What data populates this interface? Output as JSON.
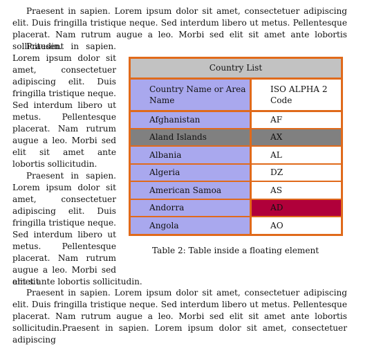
{
  "paragraphs": {
    "top": "Praesent in sapien. Lorem ipsum dolor sit amet, consectetuer adipiscing elit. Duis fringilla tristique neque. Sed interdum libero ut metus. Pellentesque placerat. Nam rutrum augue a leo. Morbi sed elit sit amet ante lobortis sollicitudin.",
    "left1": "Praesent in sapien. Lorem ipsum dolor sit amet, consectetuer adipiscing elit. Duis fringilla tristique neque. Sed interdum libero ut metus. Pellentesque placerat. Nam rutrum augue a leo. Morbi sed elit sit amet ante lobortis sollicitudin.",
    "left2": "Praesent in sapien. Lorem ipsum dolor sit amet, consectetuer adipiscing elit. Duis fringilla tristique neque. Sed interdum libero ut metus. Pellentesque placerat. Nam rutrum augue a leo. Morbi sed elit sit",
    "left2_tail": "amet ante lobortis sollicitudin.",
    "bottom": "Praesent in sapien. Lorem ipsum dolor sit amet, consectetuer adipiscing elit. Duis fringilla tristique neque. Sed interdum libero ut metus. Pellentesque placerat. Nam rutrum augue a leo. Morbi sed elit sit amet ante lobortis sollicitudin.Praesent in sapien. Lorem ipsum dolor sit amet, consectetuer adipiscing"
  },
  "table": {
    "title": "Country List",
    "header": {
      "col1": "Country Name or Area Name",
      "col2": "ISO ALPHA 2 Code"
    },
    "rows": [
      {
        "name": "Afghanistan",
        "code": "AF"
      },
      {
        "name": "Aland Islands",
        "code": "AX"
      },
      {
        "name": "Albania",
        "code": "AL"
      },
      {
        "name": "Algeria",
        "code": "DZ"
      },
      {
        "name": "American Samoa",
        "code": "AS"
      },
      {
        "name": "Andorra",
        "code": "AD"
      },
      {
        "name": "Angola",
        "code": "AO"
      }
    ],
    "colors": {
      "border": "#e06a1b",
      "name_bg": "#a9a8ee",
      "title_bg": "#c2c2c2",
      "highlight_gray": "#808080",
      "highlight_red": "#b0003a"
    }
  },
  "caption": "Table 2: Table inside a floating element"
}
